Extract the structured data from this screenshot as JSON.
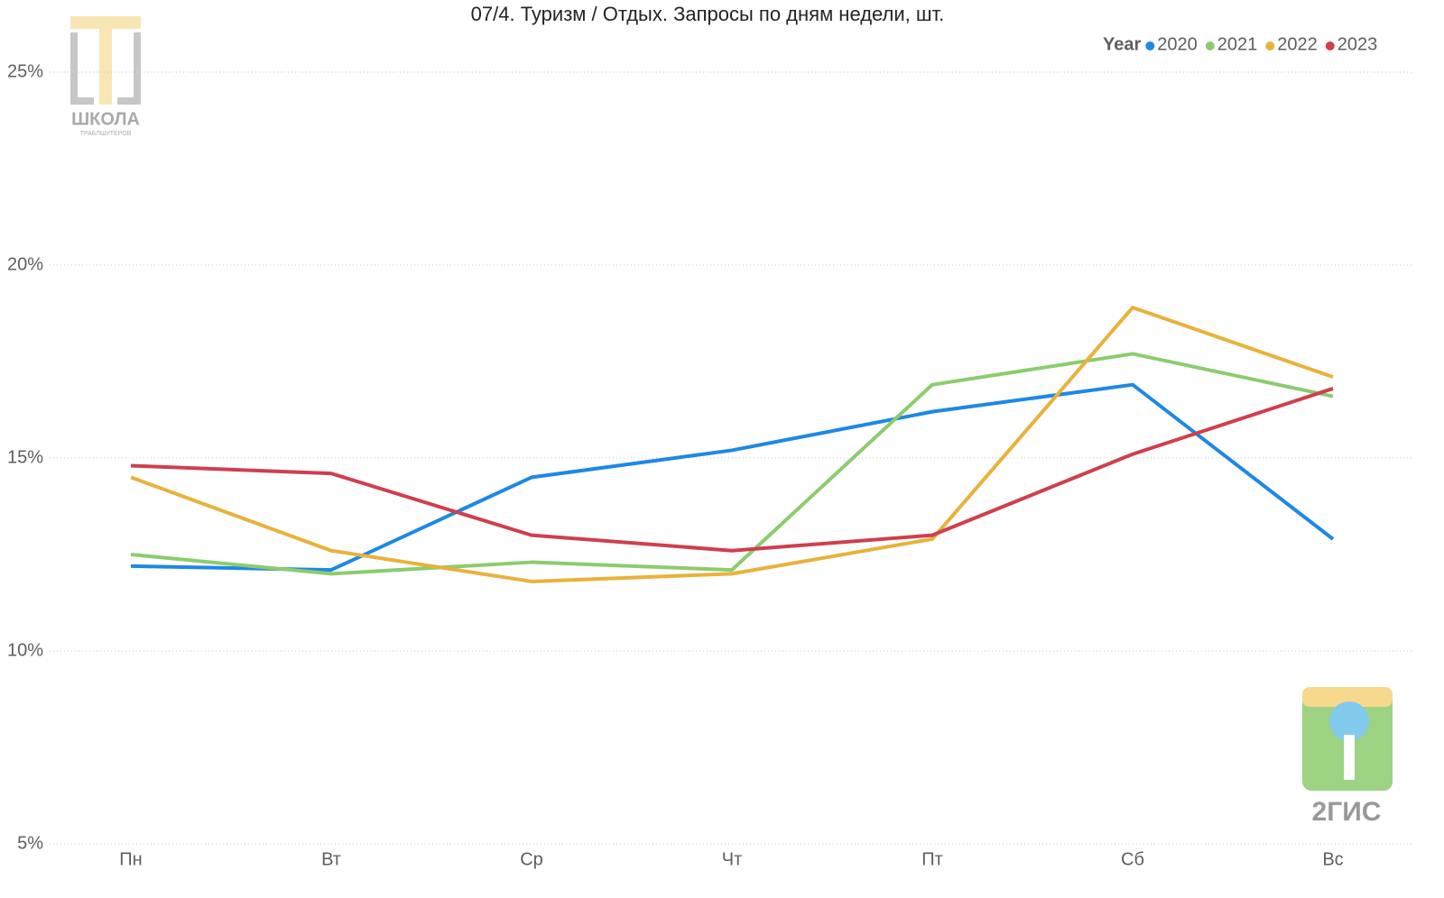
{
  "chart_data": {
    "type": "line",
    "title": "07/4. Туризм / Отдых. Запросы по дням недели, шт.",
    "legend_title": "Year",
    "legend_position": "top-right",
    "categories": [
      "Пн",
      "Вт",
      "Ср",
      "Чт",
      "Пт",
      "Сб",
      "Вс"
    ],
    "series": [
      {
        "name": "2020",
        "color": "#1e88e5",
        "values": [
          12.2,
          12.1,
          14.5,
          15.2,
          16.2,
          16.9,
          12.9
        ]
      },
      {
        "name": "2021",
        "color": "#8ccc6e",
        "values": [
          12.5,
          12.0,
          12.3,
          12.1,
          16.9,
          17.7,
          16.6
        ]
      },
      {
        "name": "2022",
        "color": "#e8b23a",
        "values": [
          14.5,
          12.6,
          11.8,
          12.0,
          12.9,
          18.9,
          17.1
        ]
      },
      {
        "name": "2023",
        "color": "#cf3f4e",
        "values": [
          14.8,
          14.6,
          13.0,
          12.6,
          13.0,
          15.1,
          16.8
        ]
      }
    ],
    "ylim": [
      5,
      25
    ],
    "yticks": [
      {
        "value": 5,
        "label": "5%"
      },
      {
        "value": 10,
        "label": "10%"
      },
      {
        "value": 15,
        "label": "15%"
      },
      {
        "value": 20,
        "label": "20%"
      },
      {
        "value": 25,
        "label": "25%"
      }
    ],
    "grid": true
  },
  "watermarks": {
    "school": "ШКОЛА",
    "school_sub": "ТРАБЛШУТЕРОВ",
    "brand": "2ГИС"
  }
}
